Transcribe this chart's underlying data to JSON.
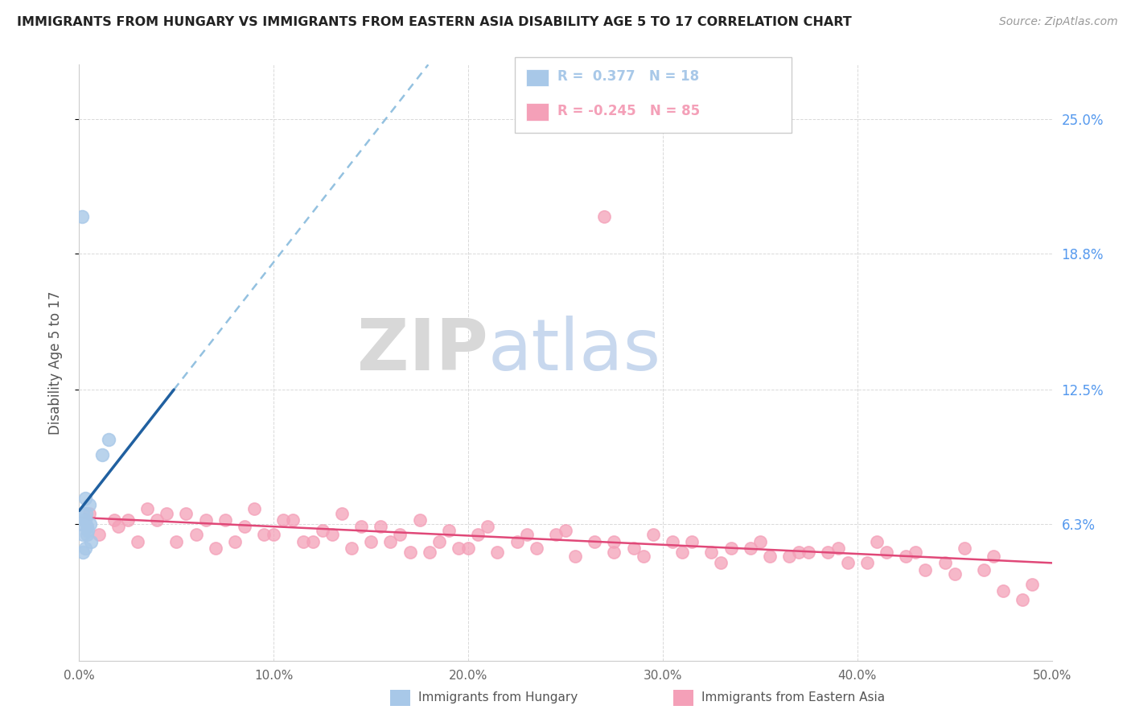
{
  "title": "IMMIGRANTS FROM HUNGARY VS IMMIGRANTS FROM EASTERN ASIA DISABILITY AGE 5 TO 17 CORRELATION CHART",
  "source_text": "Source: ZipAtlas.com",
  "ylabel": "Disability Age 5 to 17",
  "watermark_zip": "ZIP",
  "watermark_atlas": "atlas",
  "xmin": 0.0,
  "xmax": 50.0,
  "ymin": 0.0,
  "ymax": 27.5,
  "right_yticks": [
    6.3,
    12.5,
    18.8,
    25.0
  ],
  "right_ytick_labels": [
    "6.3%",
    "12.5%",
    "18.8%",
    "25.0%"
  ],
  "hungary_color": "#a8c8e8",
  "eastern_asia_color": "#f4a0b8",
  "hungary_trend_color": "#2060a0",
  "eastern_asia_trend_color": "#e04878",
  "hungary_R": 0.377,
  "hungary_N": 18,
  "eastern_asia_R": -0.245,
  "eastern_asia_N": 85,
  "hungary_scatter_x": [
    0.15,
    1.2,
    1.5,
    0.3,
    0.5,
    0.4,
    0.6,
    0.3,
    0.2,
    0.35,
    0.1,
    0.25,
    0.45,
    0.2,
    0.4,
    0.3,
    0.55,
    0.2
  ],
  "hungary_scatter_y": [
    20.5,
    9.5,
    10.2,
    7.5,
    7.2,
    5.8,
    5.5,
    5.2,
    5.0,
    6.8,
    6.3,
    6.5,
    6.0,
    6.8,
    6.2,
    6.5,
    6.3,
    5.8
  ],
  "eastern_asia_scatter_x": [
    0.5,
    27.0,
    1.8,
    3.5,
    5.5,
    7.5,
    9.0,
    11.0,
    13.5,
    15.5,
    17.5,
    19.0,
    21.0,
    23.0,
    25.0,
    27.5,
    29.5,
    31.5,
    33.5,
    35.0,
    37.0,
    39.0,
    41.0,
    43.0,
    45.5,
    47.0,
    49.0,
    2.5,
    4.5,
    6.5,
    8.5,
    10.5,
    12.5,
    14.5,
    16.5,
    18.5,
    20.5,
    22.5,
    24.5,
    26.5,
    28.5,
    30.5,
    32.5,
    34.5,
    36.5,
    38.5,
    40.5,
    42.5,
    44.5,
    46.5,
    48.5,
    1.0,
    3.0,
    5.0,
    7.0,
    9.5,
    11.5,
    13.0,
    15.0,
    17.0,
    19.5,
    21.5,
    23.5,
    25.5,
    27.5,
    29.0,
    31.0,
    33.0,
    35.5,
    37.5,
    39.5,
    41.5,
    43.5,
    45.0,
    47.5,
    2.0,
    4.0,
    6.0,
    8.0,
    10.0,
    12.0,
    14.0,
    16.0,
    18.0,
    20.0
  ],
  "eastern_asia_scatter_y": [
    6.8,
    20.5,
    6.5,
    7.0,
    6.8,
    6.5,
    7.0,
    6.5,
    6.8,
    6.2,
    6.5,
    6.0,
    6.2,
    5.8,
    6.0,
    5.5,
    5.8,
    5.5,
    5.2,
    5.5,
    5.0,
    5.2,
    5.5,
    5.0,
    5.2,
    4.8,
    3.5,
    6.5,
    6.8,
    6.5,
    6.2,
    6.5,
    6.0,
    6.2,
    5.8,
    5.5,
    5.8,
    5.5,
    5.8,
    5.5,
    5.2,
    5.5,
    5.0,
    5.2,
    4.8,
    5.0,
    4.5,
    4.8,
    4.5,
    4.2,
    2.8,
    5.8,
    5.5,
    5.5,
    5.2,
    5.8,
    5.5,
    5.8,
    5.5,
    5.0,
    5.2,
    5.0,
    5.2,
    4.8,
    5.0,
    4.8,
    5.0,
    4.5,
    4.8,
    5.0,
    4.5,
    5.0,
    4.2,
    4.0,
    3.2,
    6.2,
    6.5,
    5.8,
    5.5,
    5.8,
    5.5,
    5.2,
    5.5,
    5.0,
    5.2
  ]
}
